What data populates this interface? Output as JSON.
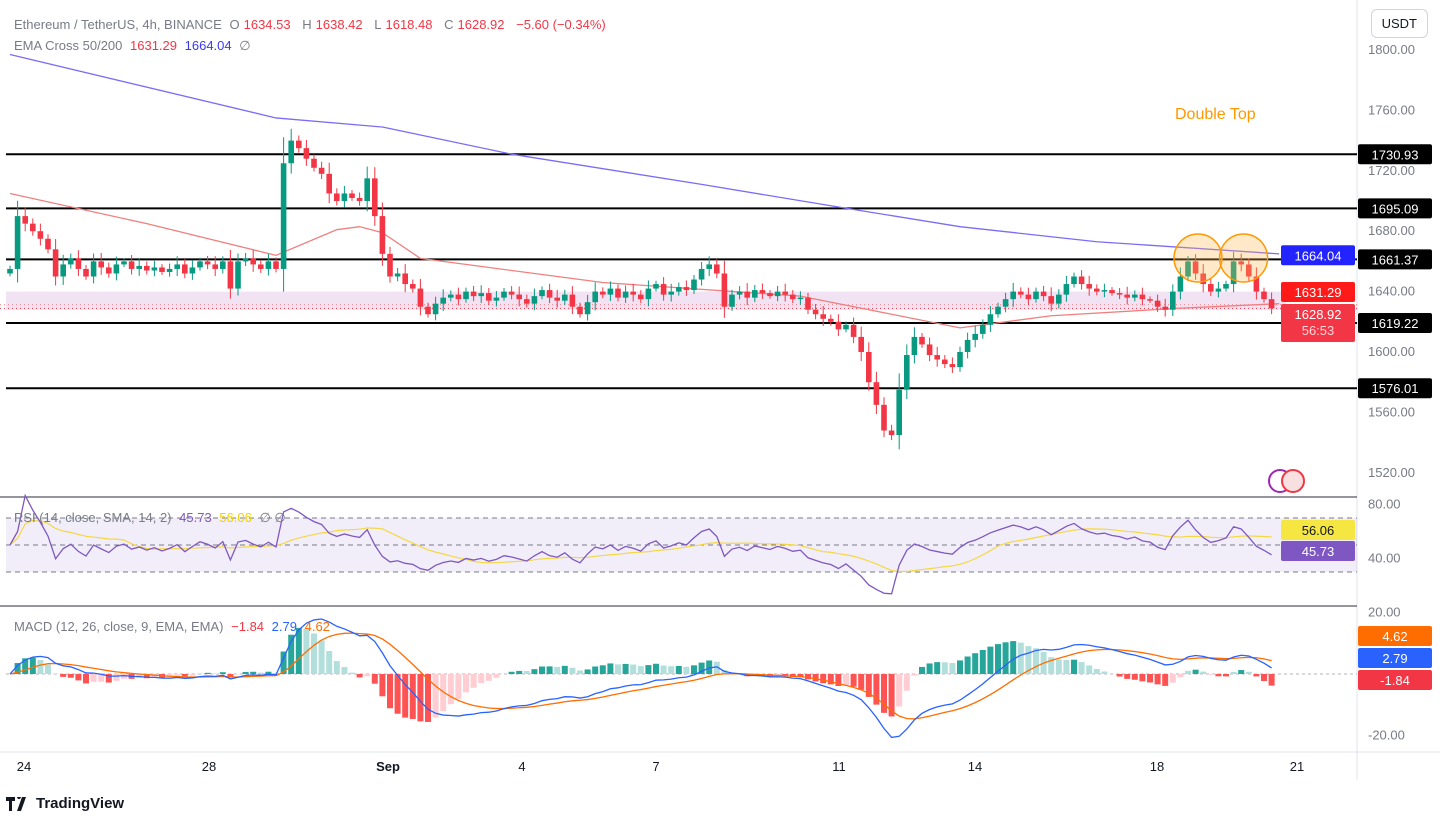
{
  "header": {
    "symbol": "Ethereum / TetherUS, 4h, BINANCE",
    "o_label": "O",
    "open": "1634.53",
    "h_label": "H",
    "high": "1638.42",
    "l_label": "L",
    "low": "1618.48",
    "c_label": "C",
    "close": "1628.92",
    "change": "−5.60 (−0.34%)"
  },
  "ema_legend": {
    "label": "EMA Cross 50/200",
    "ema50": "1631.29",
    "ema200": "1664.04",
    "icon": "∅"
  },
  "rsi_legend": {
    "label": "RSI (14, close, SMA, 14, 2)",
    "rsi": "45.73",
    "sma": "56.06",
    "icon": "∅ ∅"
  },
  "macd_legend": {
    "label": "MACD (12, 26, close, 9, EMA, EMA)",
    "hist": "−1.84",
    "macd": "2.79",
    "signal": "4.62"
  },
  "currency_button": "USDT",
  "annotation": "Double Top",
  "brand": "TradingView",
  "colors": {
    "up": "#089981",
    "down": "#f23645",
    "ema50": "#f08080",
    "ema200": "#7b6cf6",
    "rsi": "#7e57c2",
    "rsi_sma": "#f5d742",
    "macd": "#2962ff",
    "signal": "#ff6d00",
    "annotation": "#ff9800"
  },
  "chart_data": {
    "type": "candlestick",
    "interval": "4h",
    "x_ticks": [
      "24",
      "28",
      "Sep",
      "4",
      "7",
      "11",
      "14",
      "18",
      "21"
    ],
    "y_ticks": [
      "1800.00",
      "1760.00",
      "1720.00",
      "1680.00",
      "1640.00",
      "1600.00",
      "1560.00",
      "1520.00"
    ],
    "ylim": [
      1505,
      1805
    ],
    "closes": [
      1655,
      1690,
      1685,
      1680,
      1675,
      1668,
      1650,
      1658,
      1662,
      1655,
      1650,
      1660,
      1656,
      1652,
      1658,
      1660,
      1655,
      1657,
      1654,
      1656,
      1653,
      1655,
      1658,
      1652,
      1656,
      1660,
      1658,
      1655,
      1660,
      1642,
      1660,
      1662,
      1658,
      1655,
      1660,
      1655,
      1725,
      1740,
      1735,
      1728,
      1722,
      1718,
      1705,
      1700,
      1705,
      1702,
      1700,
      1715,
      1690,
      1665,
      1650,
      1652,
      1645,
      1642,
      1630,
      1625,
      1632,
      1636,
      1638,
      1635,
      1640,
      1637,
      1639,
      1634,
      1636,
      1640,
      1638,
      1635,
      1632,
      1637,
      1641,
      1636,
      1634,
      1638,
      1630,
      1625,
      1633,
      1640,
      1638,
      1642,
      1636,
      1640,
      1638,
      1635,
      1642,
      1645,
      1638,
      1640,
      1643,
      1641,
      1648,
      1655,
      1658,
      1652,
      1630,
      1638,
      1640,
      1636,
      1641,
      1639,
      1637,
      1640,
      1638,
      1635,
      1636,
      1628,
      1625,
      1622,
      1620,
      1615,
      1618,
      1610,
      1600,
      1580,
      1565,
      1548,
      1545,
      1575,
      1598,
      1610,
      1605,
      1598,
      1595,
      1592,
      1590,
      1600,
      1608,
      1612,
      1618,
      1625,
      1630,
      1635,
      1640,
      1638,
      1635,
      1640,
      1637,
      1632,
      1638,
      1645,
      1650,
      1645,
      1642,
      1640,
      1641,
      1639,
      1638,
      1636,
      1638,
      1635,
      1634,
      1630,
      1628,
      1640,
      1650,
      1660,
      1652,
      1645,
      1640,
      1642,
      1645,
      1660,
      1658,
      1650,
      1640,
      1635,
      1628.92
    ],
    "ema200": [
      [
        0,
        1797
      ],
      [
        35,
        1755
      ],
      [
        49,
        1749
      ],
      [
        66,
        1731
      ],
      [
        91,
        1711
      ],
      [
        109,
        1696
      ],
      [
        125,
        1683
      ],
      [
        143,
        1673
      ],
      [
        167,
        1665
      ]
    ],
    "ema50": [
      [
        0,
        1705
      ],
      [
        18,
        1685
      ],
      [
        35,
        1664
      ],
      [
        43,
        1681
      ],
      [
        46,
        1683
      ],
      [
        49,
        1679
      ],
      [
        54,
        1662
      ],
      [
        78,
        1646
      ],
      [
        104,
        1637
      ],
      [
        117,
        1624
      ],
      [
        125,
        1616
      ],
      [
        137,
        1624
      ],
      [
        154,
        1629
      ],
      [
        167,
        1632
      ]
    ],
    "levels": [
      {
        "value": "1730.93"
      },
      {
        "value": "1695.09"
      },
      {
        "value": "1661.37"
      },
      {
        "value": "1619.22"
      },
      {
        "value": "1576.01"
      }
    ],
    "zone": [
      1628,
      1640
    ],
    "price_tags": {
      "ema200": "1664.04",
      "ema50": "1631.29",
      "last": "1628.92",
      "countdown": "56:53"
    },
    "double_top_at": [
      155,
      161
    ],
    "rsi": {
      "y_ticks": [
        "80.00",
        "40.00"
      ],
      "bands": [
        30,
        50,
        70
      ],
      "last": "45.73",
      "sma_last": "56.06"
    },
    "macd": {
      "y_ticks": [
        "20.00",
        "-20.00"
      ],
      "macd_last": "2.79",
      "signal_last": "4.62",
      "hist_last": "-1.84"
    }
  }
}
